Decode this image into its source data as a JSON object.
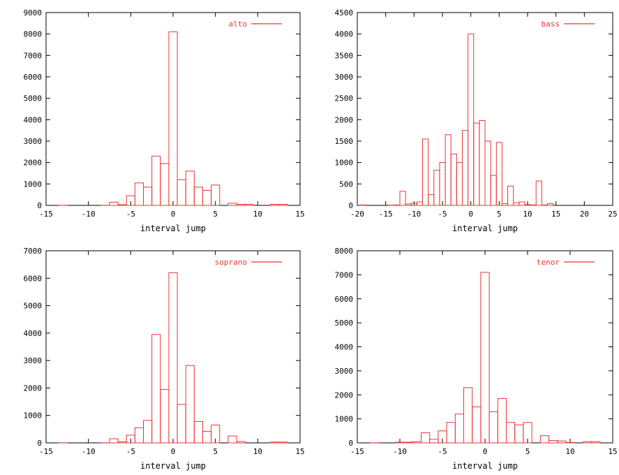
{
  "chart_data": [
    {
      "type": "bar",
      "xlabel": "interval jump",
      "legend": "alto",
      "legend_position": "top-right",
      "xlim": [
        -15,
        15
      ],
      "ylim": [
        0,
        9000
      ],
      "xticks": [
        -15,
        -10,
        -5,
        0,
        5,
        10,
        15
      ],
      "yticks": [
        0,
        1000,
        2000,
        3000,
        4000,
        5000,
        6000,
        7000,
        8000,
        9000
      ],
      "x": [
        -13,
        -12,
        -11,
        -10,
        -9,
        -8,
        -7,
        -6,
        -5,
        -4,
        -3,
        -2,
        -1,
        0,
        1,
        2,
        3,
        4,
        5,
        6,
        7,
        8,
        9,
        10,
        11,
        12,
        13
      ],
      "values": [
        5,
        0,
        0,
        0,
        0,
        5,
        150,
        30,
        450,
        1050,
        850,
        2300,
        1950,
        8100,
        1200,
        1600,
        850,
        700,
        950,
        0,
        100,
        50,
        50,
        0,
        0,
        50,
        50
      ]
    },
    {
      "type": "bar",
      "xlabel": "interval jump",
      "legend": "bass",
      "legend_position": "top-right",
      "xlim": [
        -20,
        25
      ],
      "ylim": [
        0,
        4500
      ],
      "xticks": [
        -20,
        -15,
        -10,
        -5,
        0,
        5,
        10,
        15,
        20,
        25
      ],
      "yticks": [
        0,
        500,
        1000,
        1500,
        2000,
        2500,
        3000,
        3500,
        4000,
        4500
      ],
      "x": [
        -19,
        -14,
        -13,
        -12,
        -11,
        -10,
        -9,
        -8,
        -7,
        -6,
        -5,
        -4,
        -3,
        -2,
        -1,
        0,
        1,
        2,
        3,
        4,
        5,
        6,
        7,
        8,
        9,
        10,
        11,
        12,
        13,
        14
      ],
      "values": [
        10,
        5,
        10,
        330,
        30,
        50,
        80,
        1550,
        250,
        820,
        1000,
        1650,
        1200,
        1000,
        1750,
        4000,
        1920,
        1980,
        1500,
        700,
        1470,
        40,
        450,
        60,
        80,
        20,
        10,
        570,
        10,
        40
      ]
    },
    {
      "type": "bar",
      "xlabel": "interval jump",
      "legend": "soprano",
      "legend_position": "top-right",
      "xlim": [
        -15,
        15
      ],
      "ylim": [
        0,
        7000
      ],
      "xticks": [
        -15,
        -10,
        -5,
        0,
        5,
        10,
        15
      ],
      "yticks": [
        0,
        1000,
        2000,
        3000,
        4000,
        5000,
        6000,
        7000
      ],
      "x": [
        -13,
        -12,
        -11,
        -10,
        -9,
        -8,
        -7,
        -6,
        -5,
        -4,
        -3,
        -2,
        -1,
        0,
        1,
        2,
        3,
        4,
        5,
        6,
        7,
        8,
        9,
        10,
        11,
        12,
        13
      ],
      "values": [
        5,
        0,
        0,
        0,
        0,
        5,
        150,
        40,
        280,
        550,
        820,
        3950,
        1950,
        6200,
        1400,
        2820,
        780,
        420,
        650,
        0,
        250,
        50,
        0,
        0,
        0,
        30,
        30
      ]
    },
    {
      "type": "bar",
      "xlabel": "interval jump",
      "legend": "tenor",
      "legend_position": "top-right",
      "xlim": [
        -15,
        15
      ],
      "ylim": [
        0,
        8000
      ],
      "xticks": [
        -15,
        -10,
        -5,
        0,
        5,
        10,
        15
      ],
      "yticks": [
        0,
        1000,
        2000,
        3000,
        4000,
        5000,
        6000,
        7000,
        8000
      ],
      "x": [
        -13,
        -12,
        -11,
        -10,
        -9,
        -8,
        -7,
        -6,
        -5,
        -4,
        -3,
        -2,
        -1,
        0,
        1,
        2,
        3,
        4,
        5,
        6,
        7,
        8,
        9,
        10,
        11,
        12,
        13
      ],
      "values": [
        5,
        0,
        0,
        30,
        30,
        50,
        420,
        150,
        500,
        850,
        1200,
        2300,
        1500,
        7100,
        1300,
        1850,
        850,
        750,
        850,
        0,
        300,
        100,
        80,
        20,
        0,
        50,
        50
      ]
    }
  ]
}
